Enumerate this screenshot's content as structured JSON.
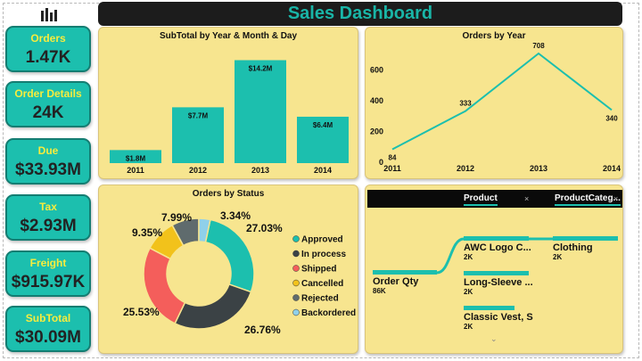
{
  "header": {
    "title": "Sales Dashboard",
    "logo_icon": "bar-chart-icon"
  },
  "kpis": [
    {
      "label": "Orders",
      "value": "1.47K"
    },
    {
      "label": "Order Details",
      "value": "24K"
    },
    {
      "label": "Due",
      "value": "$33.93M"
    },
    {
      "label": "Tax",
      "value": "$2.93M"
    },
    {
      "label": "Freight",
      "value": "$915.97K"
    },
    {
      "label": "SubTotal",
      "value": "$30.09M"
    }
  ],
  "colors": {
    "accent": "#1cbfae",
    "panel": "#f7e58f",
    "title_text": "#19b5a7",
    "kpi_label": "#f7ec3e"
  },
  "chart_data": [
    {
      "type": "bar",
      "title": "SubTotal by Year & Month & Day",
      "categories": [
        "2011",
        "2012",
        "2013",
        "2014"
      ],
      "values": [
        1.8,
        7.7,
        14.2,
        6.4
      ],
      "data_labels": [
        "$1.8M",
        "$7.7M",
        "$14.2M",
        "$6.4M"
      ],
      "units": "$M",
      "ylim": [
        0,
        15
      ]
    },
    {
      "type": "line",
      "title": "Orders  by Year",
      "x": [
        "2011",
        "2012",
        "2013",
        "2014"
      ],
      "values": [
        84,
        333,
        708,
        340
      ],
      "yticks": [
        0,
        200,
        400,
        600
      ],
      "ylim": [
        0,
        760
      ]
    },
    {
      "type": "pie",
      "title": "Orders by Status",
      "labels": [
        "Approved",
        "In process",
        "Shipped",
        "Cancelled",
        "Rejected",
        "Backordered"
      ],
      "values": [
        27.03,
        26.76,
        25.53,
        9.35,
        7.99,
        3.34
      ],
      "data_labels": [
        "27.03%",
        "26.76%",
        "25.53%",
        "9.35%",
        "7.99%",
        "3.34%"
      ],
      "colors": [
        "#1cbfae",
        "#3b4245",
        "#f45e5b",
        "#f2c21b",
        "#5f6b6d",
        "#8fd0ea"
      ],
      "legend_position": "right"
    }
  ],
  "tree": {
    "header_product": "Product",
    "header_category": "ProductCateg...",
    "close_glyph": "×",
    "root": {
      "label": "Order Qty",
      "value": "86K"
    },
    "products": [
      {
        "label": "AWC Logo C...",
        "value": "2K"
      },
      {
        "label": "Long-Sleeve ...",
        "value": "2K"
      },
      {
        "label": "Classic Vest, S",
        "value": "2K"
      }
    ],
    "category": {
      "label": "Clothing",
      "value": "2K"
    },
    "more_glyph": "⌄"
  }
}
